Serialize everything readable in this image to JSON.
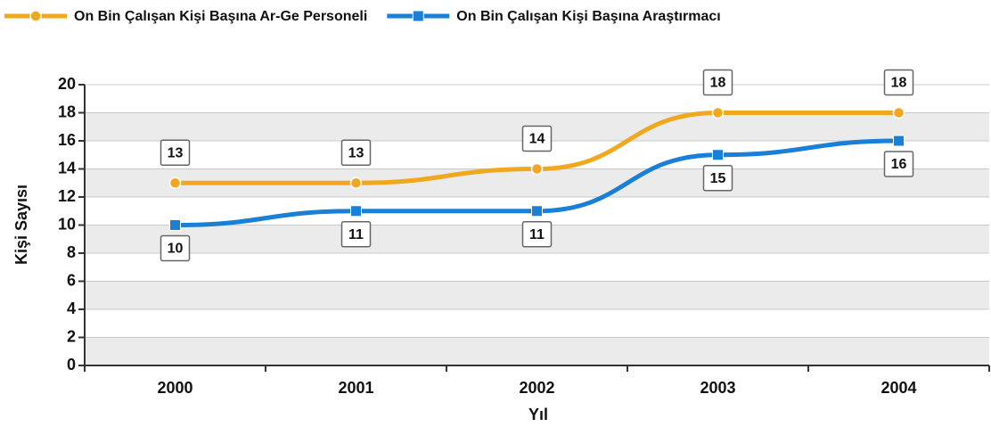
{
  "chart_data": {
    "type": "line",
    "categories": [
      "2000",
      "2001",
      "2002",
      "2003",
      "2004"
    ],
    "series": [
      {
        "name": "On Bin Çalışan Kişi Başına Ar-Ge Personeli",
        "color": "#f0a81e",
        "values": [
          13,
          13,
          14,
          18,
          18
        ]
      },
      {
        "name": "On Bin Çalışan Kişi Başına Araştırmacı",
        "color": "#1a7fd6",
        "values": [
          10,
          11,
          11,
          15,
          16
        ]
      }
    ],
    "x_label": "Yıl",
    "y_label": "Kişi Sayısı",
    "ylim": [
      0,
      20
    ],
    "yticks": [
      0,
      2,
      4,
      6,
      8,
      10,
      12,
      14,
      16,
      18,
      20
    ],
    "grid": true
  }
}
